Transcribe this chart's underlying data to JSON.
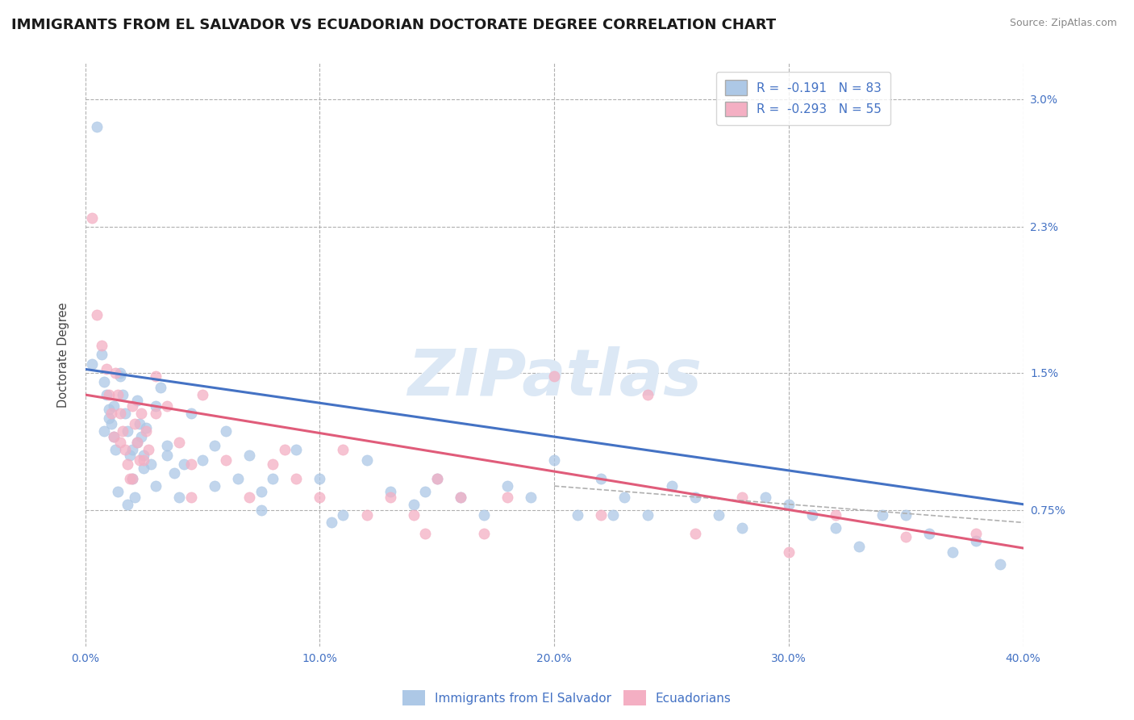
{
  "title": "IMMIGRANTS FROM EL SALVADOR VS ECUADORIAN DOCTORATE DEGREE CORRELATION CHART",
  "source_text": "Source: ZipAtlas.com",
  "ylabel": "Doctorate Degree",
  "xlim": [
    0.0,
    40.0
  ],
  "ylim": [
    0.0,
    3.2
  ],
  "yticks": [
    0.75,
    1.5,
    2.3,
    3.0
  ],
  "ytick_labels": [
    "0.75%",
    "1.5%",
    "2.3%",
    "3.0%"
  ],
  "xtick_labels": [
    "0.0%",
    "10.0%",
    "20.0%",
    "30.0%",
    "40.0%"
  ],
  "xticks": [
    0.0,
    10.0,
    20.0,
    30.0,
    40.0
  ],
  "legend_r1": "R =  -0.191",
  "legend_n1": "N = 83",
  "legend_r2": "R =  -0.293",
  "legend_n2": "N = 55",
  "color_blue": "#adc8e6",
  "color_blue_line": "#4472c4",
  "color_pink": "#f4afc3",
  "color_pink_line": "#e05c7a",
  "color_text": "#4472c4",
  "watermark": "ZIPatlas",
  "watermark_color": "#dce8f5",
  "background_color": "#ffffff",
  "grid_color": "#b0b0b0",
  "blue_line_start": 1.52,
  "blue_line_end": 0.78,
  "pink_line_start": 1.38,
  "pink_line_end": 0.54,
  "blue_x": [
    0.3,
    0.5,
    0.7,
    0.8,
    0.9,
    1.0,
    1.1,
    1.2,
    1.3,
    1.4,
    1.5,
    1.6,
    1.7,
    1.8,
    1.9,
    2.0,
    2.1,
    2.2,
    2.3,
    2.4,
    2.5,
    2.6,
    2.8,
    3.0,
    3.2,
    3.5,
    3.8,
    4.0,
    4.5,
    5.0,
    5.5,
    6.0,
    6.5,
    7.0,
    7.5,
    8.0,
    9.0,
    10.0,
    11.0,
    12.0,
    13.0,
    14.0,
    15.0,
    16.0,
    17.0,
    18.0,
    19.0,
    20.0,
    21.0,
    22.0,
    23.0,
    24.0,
    25.0,
    26.0,
    27.0,
    28.0,
    29.0,
    30.0,
    31.0,
    32.0,
    33.0,
    34.0,
    35.0,
    36.0,
    37.0,
    38.0,
    39.0,
    1.0,
    1.5,
    2.0,
    2.5,
    3.0,
    0.8,
    1.2,
    1.8,
    2.2,
    3.5,
    4.2,
    5.5,
    7.5,
    10.5,
    14.5,
    22.5
  ],
  "blue_y": [
    1.55,
    2.85,
    1.6,
    1.45,
    1.38,
    1.3,
    1.22,
    1.15,
    1.08,
    0.85,
    1.5,
    1.38,
    1.28,
    1.18,
    1.05,
    0.92,
    0.82,
    1.35,
    1.22,
    1.15,
    1.05,
    1.2,
    1.0,
    0.88,
    1.42,
    1.1,
    0.95,
    0.82,
    1.28,
    1.02,
    1.1,
    1.18,
    0.92,
    1.05,
    0.85,
    0.92,
    1.08,
    0.92,
    0.72,
    1.02,
    0.85,
    0.78,
    0.92,
    0.82,
    0.72,
    0.88,
    0.82,
    1.02,
    0.72,
    0.92,
    0.82,
    0.72,
    0.88,
    0.82,
    0.72,
    0.65,
    0.82,
    0.78,
    0.72,
    0.65,
    0.55,
    0.72,
    0.72,
    0.62,
    0.52,
    0.58,
    0.45,
    1.25,
    1.48,
    1.08,
    0.98,
    1.32,
    1.18,
    1.32,
    0.78,
    1.12,
    1.05,
    1.0,
    0.88,
    0.75,
    0.68,
    0.85,
    0.72
  ],
  "pink_x": [
    0.3,
    0.5,
    0.7,
    0.9,
    1.0,
    1.1,
    1.2,
    1.3,
    1.4,
    1.5,
    1.6,
    1.7,
    1.8,
    1.9,
    2.0,
    2.1,
    2.2,
    2.3,
    2.4,
    2.5,
    2.6,
    2.7,
    3.0,
    3.5,
    4.0,
    4.5,
    5.0,
    6.0,
    7.0,
    8.0,
    9.0,
    10.0,
    11.0,
    12.0,
    13.0,
    14.0,
    15.0,
    16.0,
    17.0,
    18.0,
    20.0,
    22.0,
    24.0,
    26.0,
    28.0,
    30.0,
    32.0,
    35.0,
    38.0,
    1.5,
    2.0,
    3.0,
    4.5,
    8.5,
    14.5
  ],
  "pink_y": [
    2.35,
    1.82,
    1.65,
    1.52,
    1.38,
    1.28,
    1.15,
    1.5,
    1.38,
    1.28,
    1.18,
    1.08,
    1.0,
    0.92,
    1.32,
    1.22,
    1.12,
    1.02,
    1.28,
    1.02,
    1.18,
    1.08,
    1.48,
    1.32,
    1.12,
    1.0,
    1.38,
    1.02,
    0.82,
    1.0,
    0.92,
    0.82,
    1.08,
    0.72,
    0.82,
    0.72,
    0.92,
    0.82,
    0.62,
    0.82,
    1.48,
    0.72,
    1.38,
    0.62,
    0.82,
    0.52,
    0.72,
    0.6,
    0.62,
    1.12,
    0.92,
    1.28,
    0.82,
    1.08,
    0.62
  ]
}
